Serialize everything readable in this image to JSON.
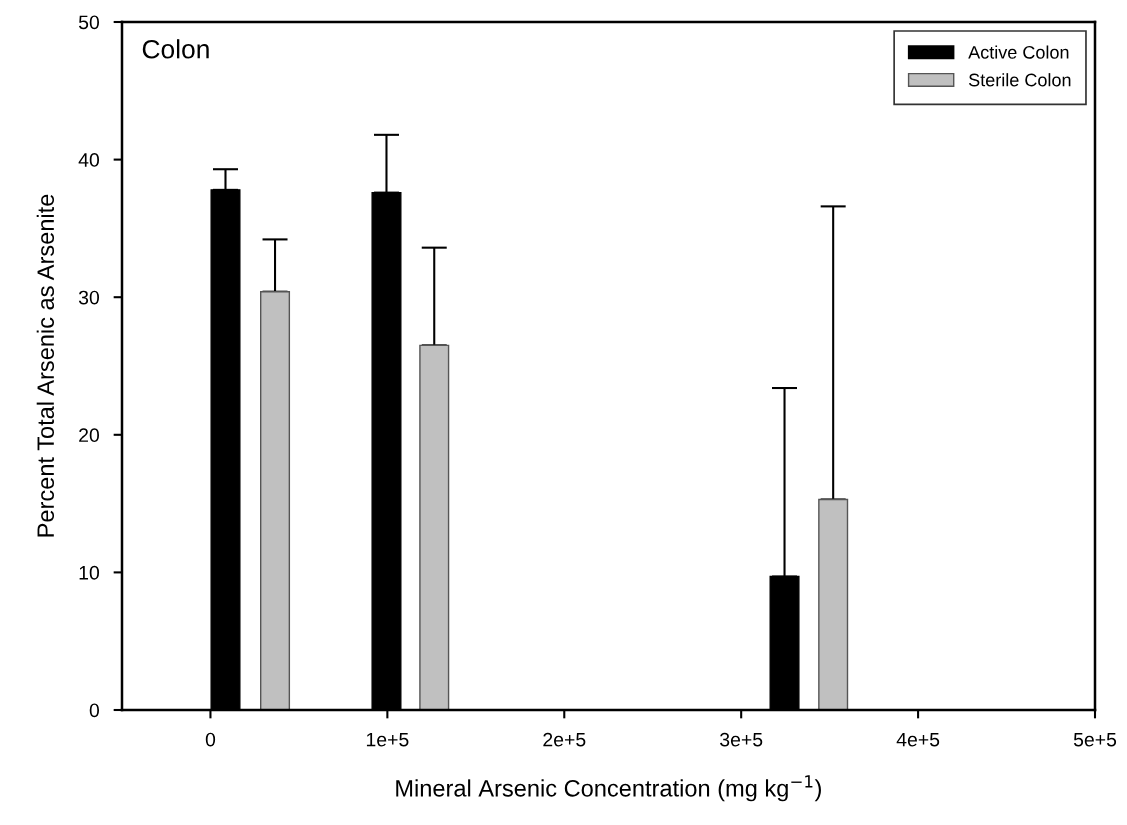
{
  "chart_data": {
    "type": "bar",
    "title": "Colon",
    "xlabel": "Mineral Arsenic Concentration (mg kg$^{−1}$)",
    "ylabel": "Percent Total Arsenic as Arsenite",
    "series": [
      {
        "name": "Active Colon",
        "color": "#000000",
        "x": [
          8500,
          99500,
          324500
        ],
        "values": [
          37.8,
          37.6,
          9.7
        ],
        "errors": [
          [
            37.8,
            39.3
          ],
          [
            37.6,
            41.8
          ],
          [
            9.7,
            23.4
          ]
        ]
      },
      {
        "name": "Sterile Colon",
        "color": "#c0c0c0",
        "x": [
          36500,
          126500,
          352000
        ],
        "values": [
          30.4,
          26.5,
          15.3
        ],
        "errors": [
          [
            30.4,
            34.2
          ],
          [
            26.5,
            33.6
          ],
          [
            15.3,
            36.6
          ]
        ]
      }
    ],
    "xlim": [
      -50000,
      500000
    ],
    "xticks": [
      {
        "value": 0,
        "label": "0"
      },
      {
        "value": 100000,
        "label": "1e+5"
      },
      {
        "value": 200000,
        "label": "2e+5"
      },
      {
        "value": 300000,
        "label": "3e+5"
      },
      {
        "value": 400000,
        "label": "4e+5"
      },
      {
        "value": 500000,
        "label": "5e+5"
      }
    ],
    "ylim": [
      0,
      50
    ],
    "yticks": [
      0,
      10,
      20,
      30,
      40,
      50
    ],
    "grid": false,
    "legend": "top right"
  }
}
